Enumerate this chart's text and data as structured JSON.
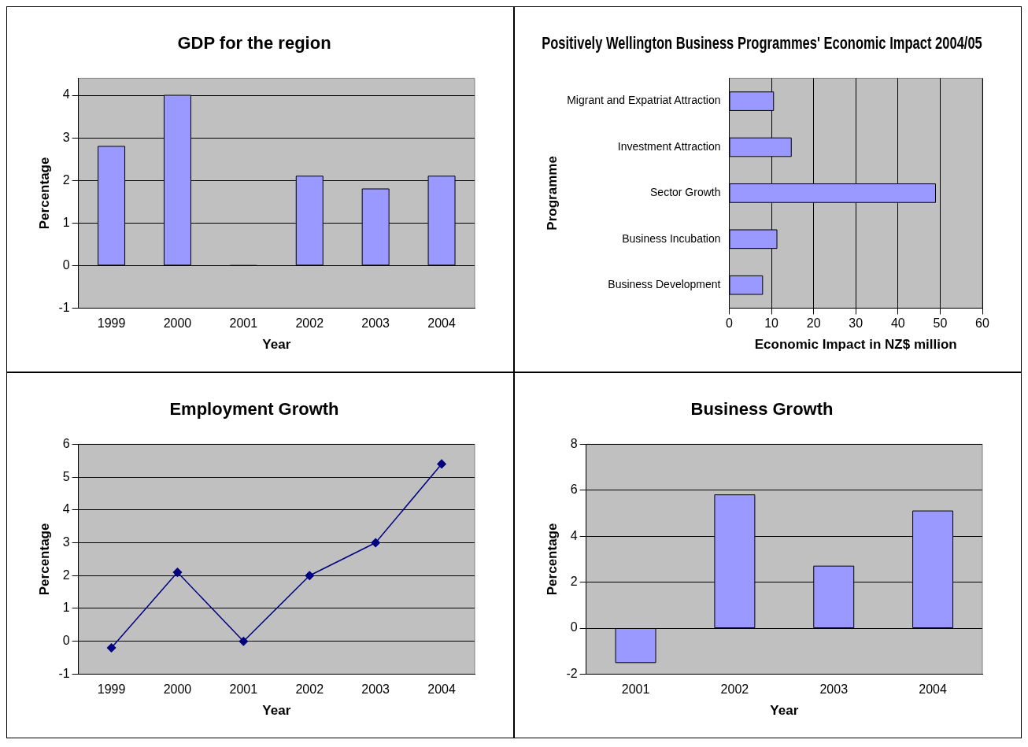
{
  "chart_data": [
    {
      "type": "bar",
      "title": "GDP for the region",
      "xlabel": "Year",
      "ylabel": "Percentage",
      "categories": [
        "1999",
        "2000",
        "2001",
        "2002",
        "2003",
        "2004"
      ],
      "series": [
        {
          "colors": [
            "#9999ff",
            "#9999ff",
            "#000000",
            "#9999ff",
            "#9999ff",
            "#9999ff"
          ],
          "values": [
            2.8,
            4.0,
            0,
            2.1,
            1.8,
            2.1
          ]
        }
      ],
      "ylim": [
        -1,
        4.4
      ],
      "yticks": [
        -1,
        0,
        1,
        2,
        3,
        4
      ],
      "grid": "y",
      "legend": false
    },
    {
      "type": "bar",
      "orientation": "horizontal",
      "title": "Positively Wellington Business Programmes' Economic Impact 2004/05",
      "xlabel": "Economic Impact in NZ$ million",
      "ylabel": "Programme",
      "categories": [
        "Migrant and Expatriat Attraction",
        "Investment Attraction",
        "Sector Growth",
        "Business Incubation",
        "Business Development"
      ],
      "series": [
        {
          "color": "#9999ff",
          "values": [
            10.5,
            14.7,
            48.9,
            11.3,
            7.9
          ]
        }
      ],
      "xlim": [
        0,
        60
      ],
      "xticks": [
        0,
        10,
        20,
        30,
        40,
        50,
        60
      ],
      "grid": "x",
      "legend": false
    },
    {
      "type": "line",
      "title": "Employment Growth",
      "xlabel": "Year",
      "ylabel": "Percentage",
      "categories": [
        "1999",
        "2000",
        "2001",
        "2002",
        "2003",
        "2004"
      ],
      "series": [
        {
          "color": "#000080",
          "values": [
            -0.2,
            2.1,
            0,
            2,
            3,
            5.4
          ]
        }
      ],
      "ylim": [
        -1,
        6
      ],
      "yticks": [
        -1,
        0,
        1,
        2,
        3,
        4,
        5,
        6
      ],
      "grid": "y",
      "marker": "diamond",
      "line_style": "solid",
      "legend": false
    },
    {
      "type": "bar",
      "title": "Business Growth",
      "xlabel": "Year",
      "ylabel": "Percentage",
      "categories": [
        "2001",
        "2002",
        "2003",
        "2004"
      ],
      "series": [
        {
          "color": "#9999ff",
          "values": [
            -1.5,
            5.8,
            2.7,
            5.1
          ]
        }
      ],
      "ylim": [
        -2,
        8
      ],
      "yticks": [
        -2,
        0,
        2,
        4,
        6,
        8
      ],
      "grid": "y",
      "legend": false
    }
  ]
}
